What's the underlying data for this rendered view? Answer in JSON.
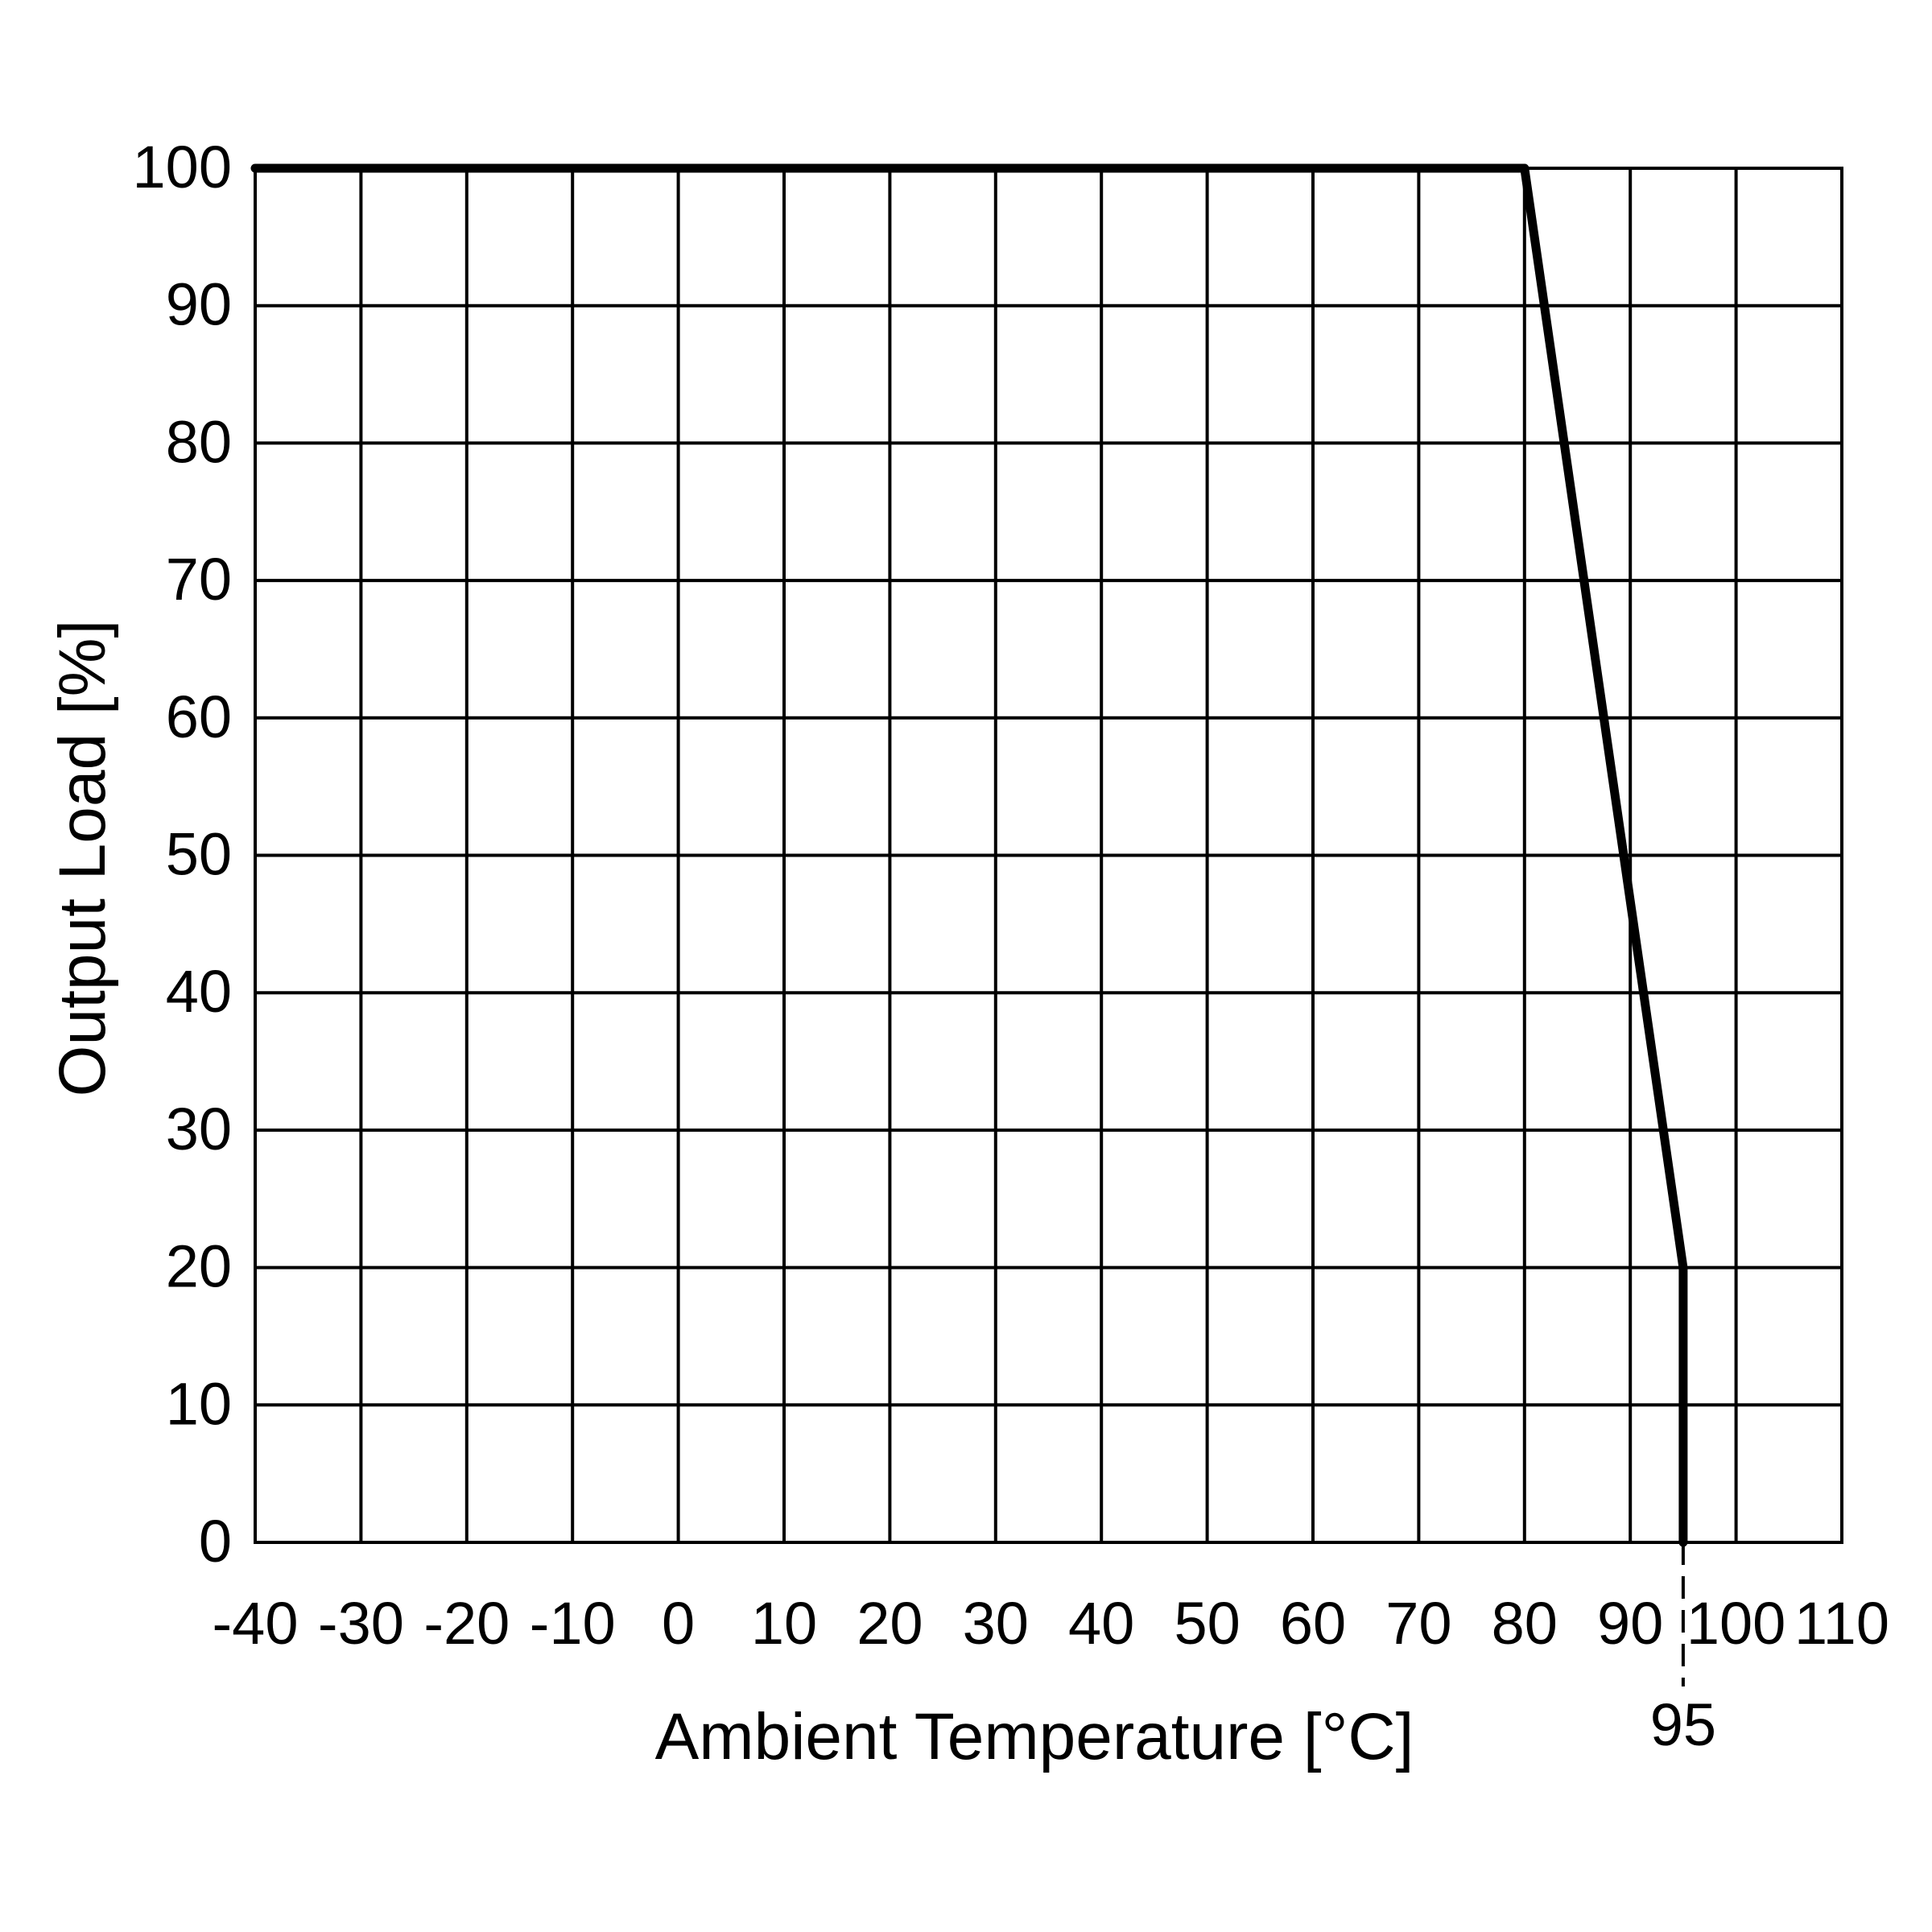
{
  "chart_data": {
    "type": "line",
    "title": "",
    "xlabel": "Ambient Temperature [°C]",
    "ylabel": "Output Load [%]",
    "xlim": [
      -40,
      110
    ],
    "ylim": [
      0,
      100
    ],
    "x_ticks": [
      -40,
      -30,
      -20,
      -10,
      0,
      10,
      20,
      30,
      40,
      50,
      60,
      70,
      80,
      90,
      100,
      110
    ],
    "x_tick_labels": [
      "-40",
      "-30",
      "-20",
      "-10",
      "0",
      "10",
      "20",
      "30",
      "40",
      "50",
      "60",
      "70",
      "80",
      "90",
      "100",
      "110"
    ],
    "y_ticks": [
      0,
      10,
      20,
      30,
      40,
      50,
      60,
      70,
      80,
      90,
      100
    ],
    "y_tick_labels": [
      "0",
      "10",
      "20",
      "30",
      "40",
      "50",
      "60",
      "70",
      "80",
      "90",
      "100"
    ],
    "grid": true,
    "series": [
      {
        "x": [
          -40,
          80,
          95,
          95
        ],
        "y": [
          100,
          100,
          20,
          0
        ]
      }
    ],
    "annotations": [
      {
        "text": "95",
        "x": 95,
        "style": "dashed-vertical-marker"
      }
    ],
    "colors": {
      "line": "#000000",
      "grid": "#000000",
      "background": "#ffffff"
    }
  }
}
